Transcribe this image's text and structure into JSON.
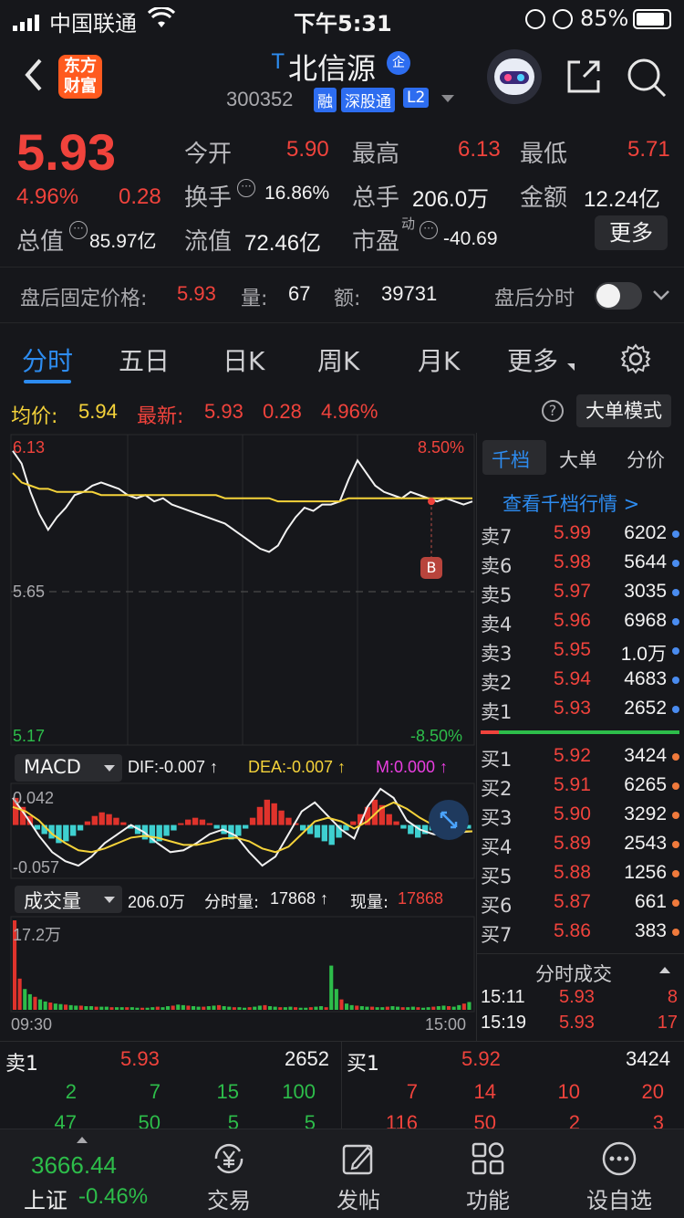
{
  "status": {
    "carrier": "中国联通",
    "time": "下午5:31",
    "battery": "85%"
  },
  "header": {
    "logo_line1": "东方",
    "logo_line2": "财富",
    "stock_prefix": "T",
    "stock_name": "北信源",
    "badge_qi": "企",
    "code": "300352",
    "tag_rong": "融",
    "tag_sgt": "深股通",
    "tag_l2": "L2"
  },
  "quote": {
    "price": "5.93",
    "change_pct": "4.96%",
    "change": "0.28",
    "open_label": "今开",
    "open": "5.90",
    "high_label": "最高",
    "high": "6.13",
    "low_label": "最低",
    "low": "5.71",
    "turnover_label": "换手",
    "turnover": "16.86%",
    "volume_label": "总手",
    "volume": "206.0万",
    "amount_label": "金额",
    "amount": "12.24亿",
    "mktcap_label": "总值",
    "mktcap": "85.97亿",
    "float_label": "流值",
    "float": "72.46亿",
    "pe_label": "市盈",
    "pe_sup": "动",
    "pe": "-40.69",
    "more": "更多"
  },
  "afterhours": {
    "label": "盘后固定价格:",
    "price": "5.93",
    "vol_label": "量:",
    "vol": "67",
    "amt_label": "额:",
    "amt": "39731",
    "timeshare_label": "盘后分时"
  },
  "tabs": [
    "分时",
    "五日",
    "日K",
    "周K",
    "月K",
    "更多"
  ],
  "avg": {
    "avg_label": "均价:",
    "avg": "5.94",
    "latest_label": "最新:",
    "latest": "5.93",
    "chg": "0.28",
    "pct": "4.96%",
    "bigorder": "大单模式"
  },
  "intraday": {
    "y_top": "6.13",
    "y_mid": "5.65",
    "y_bot": "5.17",
    "pct_top": "8.50%",
    "pct_bot": "-8.50%",
    "marker": "B",
    "price": [
      6.09,
      6.05,
      5.96,
      5.89,
      5.84,
      5.88,
      5.91,
      5.95,
      5.96,
      5.98,
      5.99,
      5.98,
      5.97,
      5.95,
      5.94,
      5.95,
      5.93,
      5.94,
      5.92,
      5.91,
      5.9,
      5.89,
      5.88,
      5.87,
      5.86,
      5.84,
      5.82,
      5.8,
      5.78,
      5.77,
      5.79,
      5.84,
      5.88,
      5.91,
      5.9,
      5.92,
      5.92,
      5.93,
      6.0,
      6.06,
      6.02,
      5.98,
      5.96,
      5.95,
      5.94,
      5.96,
      5.95,
      5.94,
      5.93,
      5.94,
      5.93,
      5.92,
      5.93
    ],
    "avg": [
      6.02,
      5.99,
      5.98,
      5.97,
      5.97,
      5.96,
      5.96,
      5.96,
      5.96,
      5.96,
      5.95,
      5.95,
      5.95,
      5.95,
      5.95,
      5.95,
      5.95,
      5.95,
      5.95,
      5.95,
      5.95,
      5.95,
      5.95,
      5.95,
      5.94,
      5.94,
      5.94,
      5.94,
      5.94,
      5.94,
      5.93,
      5.93,
      5.93,
      5.93,
      5.93,
      5.93,
      5.93,
      5.93,
      5.94,
      5.94,
      5.94,
      5.94,
      5.94,
      5.94,
      5.94,
      5.94,
      5.94,
      5.94,
      5.94,
      5.94,
      5.94,
      5.94,
      5.94
    ],
    "ymin": 5.17,
    "ymax": 6.13
  },
  "macd": {
    "label": "MACD",
    "dif": "DIF:-0.007 ↑",
    "dea": "DEA:-0.007 ↑",
    "m": "M:0.000 ↑",
    "y_top": "0.042",
    "y_bot": "-0.057",
    "hist": [
      0.03,
      0.02,
      0.01,
      -0.005,
      -0.01,
      -0.015,
      -0.02,
      -0.018,
      -0.012,
      -0.006,
      0.004,
      0.01,
      0.014,
      0.012,
      0.008,
      0.003,
      -0.004,
      -0.01,
      -0.016,
      -0.02,
      -0.018,
      -0.012,
      -0.006,
      0.002,
      0.006,
      0.008,
      0.006,
      0.002,
      -0.004,
      -0.01,
      -0.016,
      -0.012,
      -0.004,
      0.008,
      0.02,
      0.028,
      0.024,
      0.016,
      0.008,
      0.002,
      -0.006,
      -0.01,
      -0.014,
      -0.018,
      -0.022,
      -0.014,
      -0.006,
      0.004,
      0.012,
      0.02,
      0.028,
      0.022,
      0.012,
      0.004,
      -0.004,
      -0.01,
      -0.014,
      -0.01,
      -0.006,
      -0.002,
      0.002,
      -0.002,
      -0.004,
      -0.004
    ],
    "difl": [
      0.03,
      0.01,
      -0.012,
      -0.03,
      -0.04,
      -0.045,
      -0.035,
      -0.02,
      -0.01,
      0.0,
      -0.008,
      -0.02,
      -0.03,
      -0.028,
      -0.02,
      -0.01,
      -0.005,
      -0.012,
      -0.03,
      -0.045,
      -0.035,
      -0.01,
      0.015,
      0.025,
      0.01,
      -0.005,
      -0.015,
      0.02,
      0.04,
      0.03,
      0.005,
      -0.005,
      -0.01,
      -0.012,
      -0.008,
      -0.007
    ],
    "deal": [
      0.02,
      0.015,
      0.005,
      -0.01,
      -0.02,
      -0.028,
      -0.03,
      -0.026,
      -0.02,
      -0.014,
      -0.012,
      -0.014,
      -0.018,
      -0.022,
      -0.022,
      -0.019,
      -0.015,
      -0.014,
      -0.018,
      -0.026,
      -0.03,
      -0.024,
      -0.01,
      0.004,
      0.008,
      0.004,
      -0.004,
      0.004,
      0.018,
      0.025,
      0.018,
      0.008,
      0.0,
      -0.006,
      -0.007,
      -0.007
    ],
    "min": -0.057,
    "max": 0.042
  },
  "volume": {
    "label": "成交量",
    "total": "206.0万",
    "fenshi_label": "分时量:",
    "fenshi": "17868 ↑",
    "now_label": "现量:",
    "now": "17868",
    "y_top": "17.2万",
    "t_start": "09:30",
    "t_end": "15:00",
    "bars": [
      17.2,
      6,
      4,
      3,
      2.5,
      2,
      1.6,
      1.4,
      1.2,
      1.1,
      1,
      0.9,
      0.8,
      0.8,
      0.7,
      0.7,
      0.6,
      0.6,
      0.6,
      0.5,
      0.5,
      0.5,
      0.5,
      0.5,
      0.4,
      0.4,
      0.4,
      0.5,
      0.6,
      0.5,
      0.7,
      0.8,
      1,
      0.9,
      0.8,
      0.7,
      0.6,
      0.6,
      0.7,
      0.8,
      0.9,
      0.7,
      0.6,
      0.5,
      0.5,
      0.4,
      0.5,
      0.6,
      0.8,
      0.9,
      0.7,
      0.6,
      0.5,
      0.5,
      0.6,
      0.5,
      0.4,
      0.4,
      0.5,
      0.6,
      0.7,
      0.5,
      8.5,
      4,
      2,
      1.2,
      0.9,
      0.8,
      0.7,
      0.6,
      0.6,
      0.5,
      0.5,
      0.6,
      0.7,
      0.6,
      0.5,
      0.5,
      0.6,
      0.5,
      0.4,
      0.5,
      0.6,
      0.7,
      0.8,
      0.7,
      0.6,
      0.9,
      1.2,
      1.5
    ],
    "max": 17.2
  },
  "orderbook": {
    "tabs": [
      "千档",
      "大单",
      "分价"
    ],
    "link": "查看千档行情 >",
    "asks": [
      {
        "label": "卖7",
        "price": "5.99",
        "vol": "6202"
      },
      {
        "label": "卖6",
        "price": "5.98",
        "vol": "5644"
      },
      {
        "label": "卖5",
        "price": "5.97",
        "vol": "3035"
      },
      {
        "label": "卖4",
        "price": "5.96",
        "vol": "6968"
      },
      {
        "label": "卖3",
        "price": "5.95",
        "vol": "1.0万"
      },
      {
        "label": "卖2",
        "price": "5.94",
        "vol": "4683"
      },
      {
        "label": "卖1",
        "price": "5.93",
        "vol": "2652"
      }
    ],
    "bids": [
      {
        "label": "买1",
        "price": "5.92",
        "vol": "3424"
      },
      {
        "label": "买2",
        "price": "5.91",
        "vol": "6265"
      },
      {
        "label": "买3",
        "price": "5.90",
        "vol": "3292"
      },
      {
        "label": "买4",
        "price": "5.89",
        "vol": "2543"
      },
      {
        "label": "买5",
        "price": "5.88",
        "vol": "1256"
      },
      {
        "label": "买6",
        "price": "5.87",
        "vol": "661"
      },
      {
        "label": "买7",
        "price": "5.86",
        "vol": "383"
      }
    ],
    "trades_title": "分时成交",
    "trades": [
      {
        "time": "15:11",
        "price": "5.93",
        "vol": "8"
      },
      {
        "time": "15:19",
        "price": "5.93",
        "vol": "17"
      }
    ]
  },
  "level1": {
    "sell_label": "卖1",
    "sell_price": "5.93",
    "sell_vol": "2652",
    "buy_label": "买1",
    "buy_price": "5.92",
    "buy_vol": "3424",
    "sell_q1": [
      "2",
      "7",
      "15",
      "100"
    ],
    "sell_q2": [
      "47",
      "50",
      "5",
      "5"
    ],
    "buy_q1": [
      "7",
      "14",
      "10",
      "20"
    ],
    "buy_q2": [
      "116",
      "50",
      "2",
      "3"
    ]
  },
  "bottomnav": {
    "index_value": "3666.44",
    "index_name": "上证",
    "index_pct": "-0.46%",
    "items": [
      "交易",
      "发帖",
      "功能",
      "设自选"
    ]
  }
}
